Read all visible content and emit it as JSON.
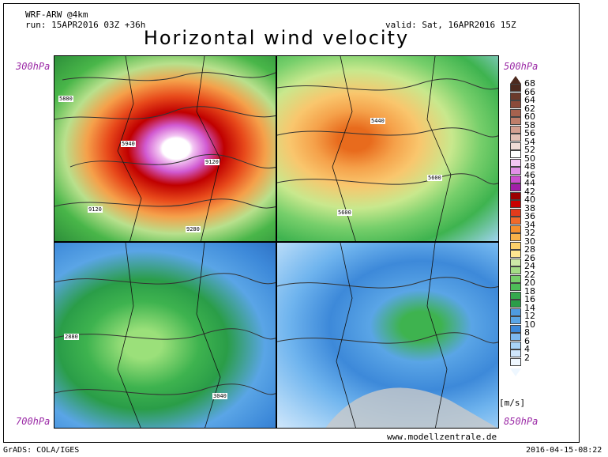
{
  "header": {
    "model": "WRF-ARW @4km",
    "run": "run: 15APR2016 03Z +36h",
    "valid": "valid: Sat, 16APR2016 15Z",
    "title": "Horizontal wind velocity"
  },
  "panels": {
    "top_left_level": "300hPa",
    "top_right_level": "500hPa",
    "bottom_left_level": "700hPa",
    "bottom_right_level": "850hPa"
  },
  "contour_labels": {
    "p1": [
      "5880",
      "5940",
      "9120",
      "9120",
      "9280"
    ],
    "p2": [
      "5440",
      "5600",
      "5600"
    ],
    "p3": [
      "2880",
      "3040"
    ]
  },
  "legend": {
    "unit": "[m/s]",
    "values": [
      68,
      66,
      64,
      62,
      60,
      58,
      56,
      54,
      52,
      50,
      48,
      46,
      44,
      42,
      40,
      38,
      36,
      34,
      32,
      30,
      28,
      26,
      24,
      22,
      20,
      18,
      16,
      14,
      12,
      10,
      8,
      6,
      4,
      2
    ],
    "colors": [
      "#4d2a1f",
      "#6b3a2b",
      "#8a4a3a",
      "#a6624e",
      "#bf7e6a",
      "#d4a091",
      "#e3c0b5",
      "#f0dcd6",
      "#ffffff",
      "#f3c6f3",
      "#e18fe6",
      "#cc4fcf",
      "#a11fa8",
      "#9b0000",
      "#c80000",
      "#e23b1b",
      "#f06a2b",
      "#f5902f",
      "#f8b24a",
      "#fbd06a",
      "#fde591",
      "#cde9a7",
      "#a4dc86",
      "#77cf6b",
      "#4dbd58",
      "#35a94c",
      "#2a9d48",
      "#4e9be1",
      "#5aa5e6",
      "#3d89d9",
      "#7db9ef",
      "#a8d3f6",
      "#cfe6fb",
      "#eef7ff"
    ]
  },
  "footer": {
    "website": "www.modellzentrale.de",
    "grads": "GrADS: COLA/IGES",
    "timestamp": "2016-04-15-08:22"
  }
}
